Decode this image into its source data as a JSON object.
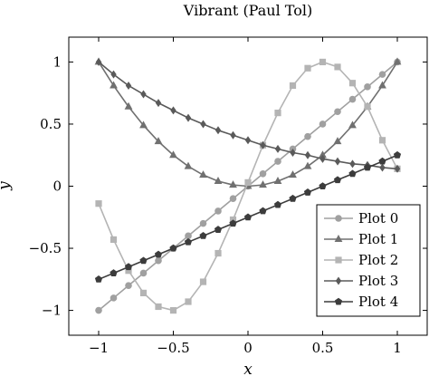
{
  "chart_data": {
    "type": "line",
    "title": "Vibrant (Paul Tol)",
    "xlabel": "x",
    "ylabel": "y",
    "xlim": [
      -1.2,
      1.2
    ],
    "ylim": [
      -1.2,
      1.2
    ],
    "xticks": [
      -1,
      -0.5,
      0,
      0.5,
      1
    ],
    "yticks": [
      -1,
      -0.5,
      0,
      0.5,
      1
    ],
    "xtick_labels": [
      "−1",
      "−0.5",
      "0",
      "0.5",
      "1"
    ],
    "ytick_labels": [
      "−1",
      "−0.5",
      "0",
      "0.5",
      "1"
    ],
    "grid": false,
    "legend_position": "bottom-right",
    "colors": {
      "plot0": "#a0a0a0",
      "plot1": "#707070",
      "plot2": "#b4b4b4",
      "plot3": "#5a5a5a",
      "plot4": "#3c3c3c",
      "axis": "#000000"
    },
    "series": [
      {
        "name": "Plot 0",
        "color_key": "plot0",
        "marker": "circle",
        "x": [
          -1,
          -0.9,
          -0.8,
          -0.7,
          -0.6,
          -0.5,
          -0.4,
          -0.3,
          -0.2,
          -0.1,
          0,
          0.1,
          0.2,
          0.3,
          0.4,
          0.5,
          0.6,
          0.7,
          0.8,
          0.9,
          1
        ],
        "y": [
          -1,
          -0.9,
          -0.8,
          -0.7,
          -0.6,
          -0.5,
          -0.4,
          -0.3,
          -0.2,
          -0.1,
          0,
          0.1,
          0.2,
          0.3,
          0.4,
          0.5,
          0.6,
          0.7,
          0.8,
          0.9,
          1
        ]
      },
      {
        "name": "Plot 1",
        "color_key": "plot1",
        "marker": "triangle",
        "x": [
          -1,
          -0.9,
          -0.8,
          -0.7,
          -0.6,
          -0.5,
          -0.4,
          -0.3,
          -0.2,
          -0.1,
          0,
          0.1,
          0.2,
          0.3,
          0.4,
          0.5,
          0.6,
          0.7,
          0.8,
          0.9,
          1
        ],
        "y": [
          1,
          0.81,
          0.64,
          0.49,
          0.36,
          0.25,
          0.16,
          0.09,
          0.04,
          0.01,
          0,
          0.01,
          0.04,
          0.09,
          0.16,
          0.25,
          0.36,
          0.49,
          0.64,
          0.81,
          1
        ]
      },
      {
        "name": "Plot 2",
        "color_key": "plot2",
        "marker": "square",
        "x": [
          -1,
          -0.9,
          -0.8,
          -0.7,
          -0.6,
          -0.5,
          -0.4,
          -0.3,
          -0.2,
          -0.1,
          0,
          0.1,
          0.2,
          0.3,
          0.4,
          0.5,
          0.6,
          0.7,
          0.8,
          0.9,
          1
        ],
        "y": [
          -0.14,
          -0.43,
          -0.68,
          -0.86,
          -0.97,
          -1,
          -0.93,
          -0.77,
          -0.54,
          -0.27,
          0.03,
          0.33,
          0.59,
          0.81,
          0.95,
          1,
          0.96,
          0.83,
          0.64,
          0.37,
          0.14
        ]
      },
      {
        "name": "Plot 3",
        "color_key": "plot3",
        "marker": "diamond",
        "x": [
          -1,
          -0.9,
          -0.8,
          -0.7,
          -0.6,
          -0.5,
          -0.4,
          -0.3,
          -0.2,
          -0.1,
          0,
          0.1,
          0.2,
          0.3,
          0.4,
          0.5,
          0.6,
          0.7,
          0.8,
          0.9,
          1
        ],
        "y": [
          1,
          0.9,
          0.81,
          0.74,
          0.67,
          0.61,
          0.55,
          0.5,
          0.45,
          0.41,
          0.37,
          0.33,
          0.3,
          0.27,
          0.25,
          0.22,
          0.2,
          0.18,
          0.17,
          0.15,
          0.14
        ]
      },
      {
        "name": "Plot 4",
        "color_key": "plot4",
        "marker": "pentagon",
        "x": [
          -1,
          -0.9,
          -0.8,
          -0.7,
          -0.6,
          -0.5,
          -0.4,
          -0.3,
          -0.2,
          -0.1,
          0,
          0.1,
          0.2,
          0.3,
          0.4,
          0.5,
          0.6,
          0.7,
          0.8,
          0.9,
          1
        ],
        "y": [
          -0.75,
          -0.7,
          -0.65,
          -0.6,
          -0.55,
          -0.5,
          -0.45,
          -0.4,
          -0.35,
          -0.3,
          -0.25,
          -0.2,
          -0.15,
          -0.1,
          -0.05,
          0,
          0.05,
          0.1,
          0.15,
          0.2,
          0.25
        ]
      }
    ]
  }
}
